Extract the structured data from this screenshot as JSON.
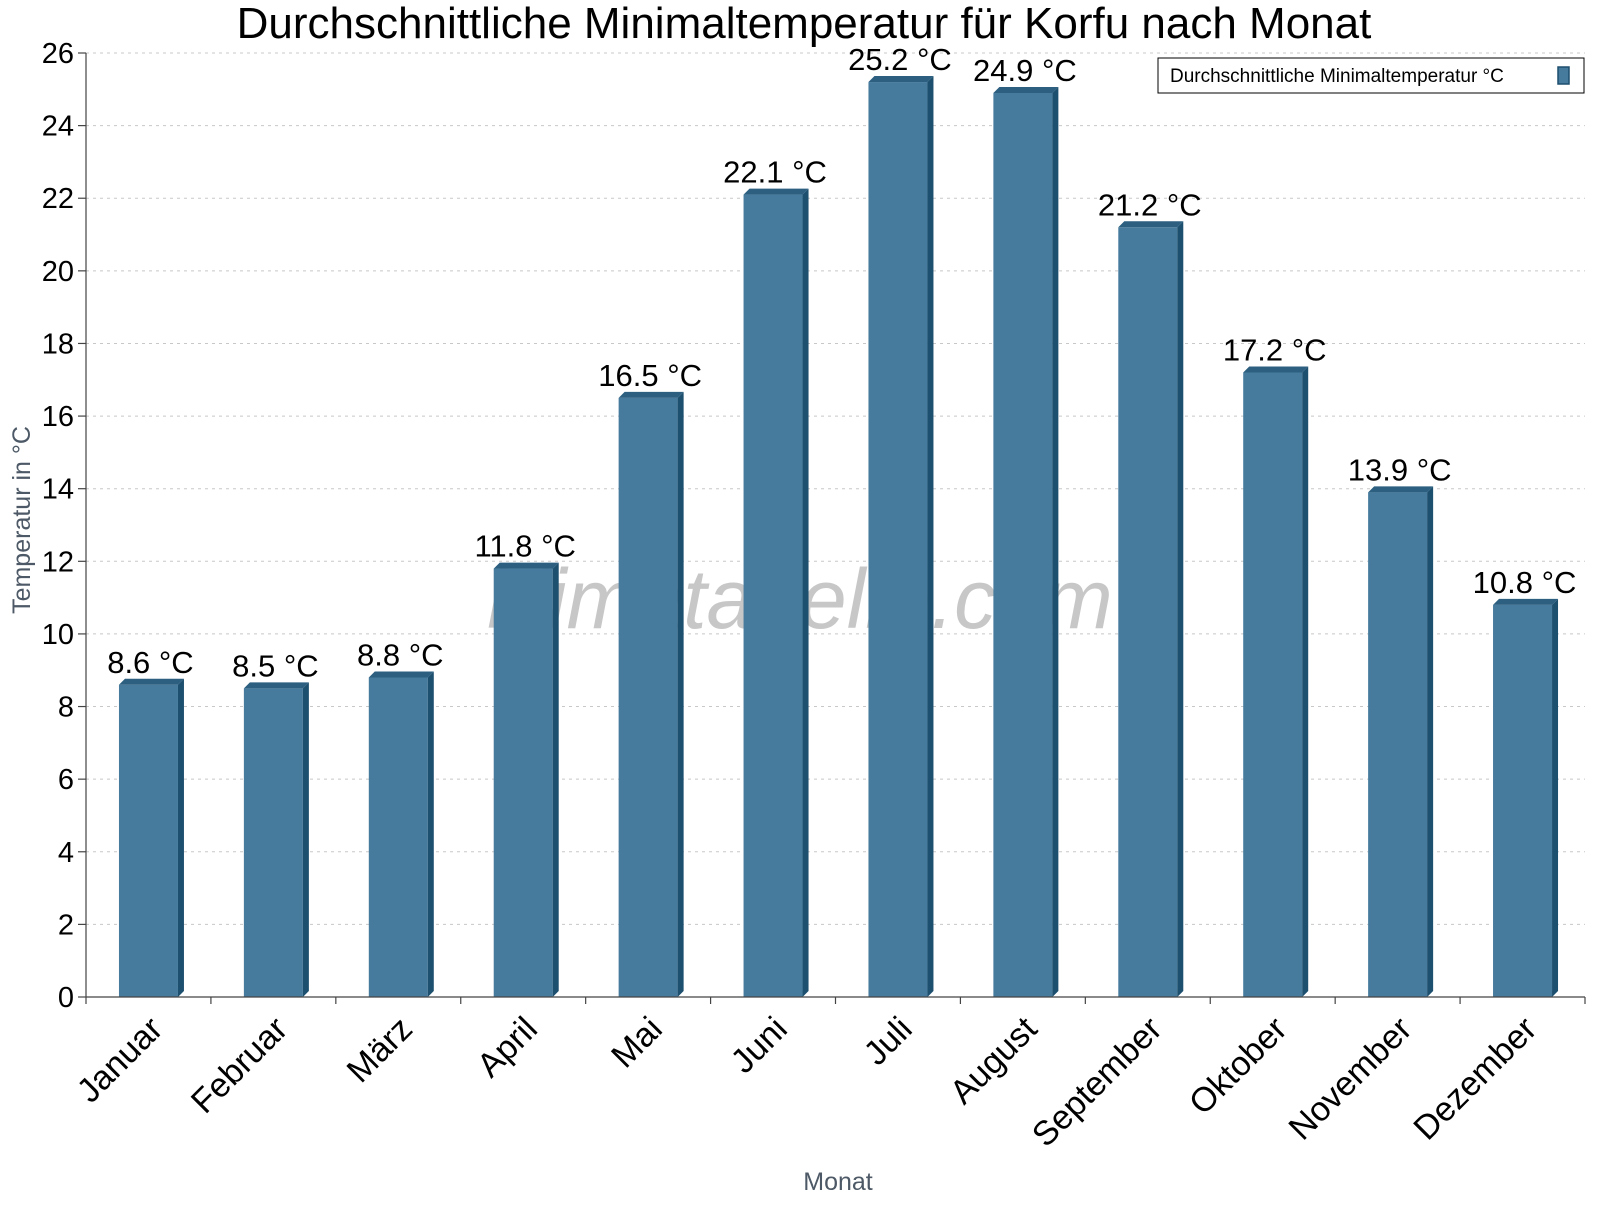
{
  "chart_data": {
    "type": "bar",
    "title": "Durchschnittliche Minimaltemperatur für Korfu nach Monat",
    "xlabel": "Monat",
    "ylabel": "Temperatur in °C",
    "categories": [
      "Januar",
      "Februar",
      "März",
      "April",
      "Mai",
      "Juni",
      "Juli",
      "August",
      "September",
      "Oktober",
      "November",
      "Dezember"
    ],
    "series": [
      {
        "name": "Durchschnittliche Minimaltemperatur °C",
        "values": [
          8.6,
          8.5,
          8.8,
          11.8,
          16.5,
          22.1,
          25.2,
          24.9,
          21.2,
          17.2,
          13.9,
          10.8
        ],
        "labels": [
          "8.6 °C",
          "8.5 °C",
          "8.8 °C",
          "11.8 °C",
          "16.5 °C",
          "22.1 °C",
          "25.2 °C",
          "24.9 °C",
          "21.2 °C",
          "17.2 °C",
          "13.9 °C",
          "10.8 °C"
        ]
      }
    ],
    "ylim": [
      0,
      26
    ],
    "yticks": [
      0,
      2,
      4,
      6,
      8,
      10,
      12,
      14,
      16,
      18,
      20,
      22,
      24,
      26
    ],
    "grid": true,
    "legend_position": "top-right",
    "bar_color": "#467b9d",
    "bar_side_color": "#1d4f6e",
    "bar_top_color": "#2c5f80"
  },
  "watermark": "klimatabelle.com"
}
